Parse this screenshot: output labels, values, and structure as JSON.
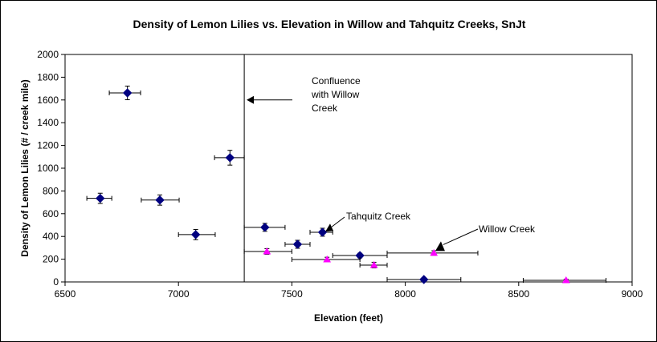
{
  "chart_data": {
    "type": "scatter",
    "title": "Density of Lemon Lilies vs. Elevation in Willow and Tahquitz Creeks, SnJt",
    "xlabel": "Elevation (feet)",
    "ylabel": "Density of Lemon Lilies (# / creek mile)",
    "xlim": [
      6500,
      9000
    ],
    "ylim": [
      0,
      2000
    ],
    "xticks": [
      6500,
      7000,
      7500,
      8000,
      8500,
      9000
    ],
    "yticks": [
      0,
      200,
      400,
      600,
      800,
      1000,
      1200,
      1400,
      1600,
      1800,
      2000
    ],
    "grid": false,
    "legend": "none",
    "series": [
      {
        "name": "Tahquitz Creek",
        "marker": "diamond",
        "color": "#000080",
        "points": [
          {
            "x": 6655,
            "y": 735,
            "xmin": 6596,
            "xmax": 6706,
            "yerr": 45
          },
          {
            "x": 6775,
            "y": 1662,
            "xmin": 6695,
            "xmax": 6833,
            "yerr": 60
          },
          {
            "x": 6918,
            "y": 720,
            "xmin": 6836,
            "xmax": 7003,
            "yerr": 45
          },
          {
            "x": 7076,
            "y": 416,
            "xmin": 7000,
            "xmax": 7162,
            "yerr": 45
          },
          {
            "x": 7227,
            "y": 1092,
            "xmin": 7159,
            "xmax": 7290,
            "yerr": 65
          },
          {
            "x": 7381,
            "y": 480,
            "xmin": 7290,
            "xmax": 7470,
            "yerr": 35
          },
          {
            "x": 7525,
            "y": 331,
            "xmin": 7470,
            "xmax": 7580,
            "yerr": 35
          },
          {
            "x": 7635,
            "y": 437,
            "xmin": 7580,
            "xmax": 7680,
            "yerr": 35
          },
          {
            "x": 7800,
            "y": 232,
            "xmin": 7680,
            "xmax": 7920,
            "yerr": 20
          },
          {
            "x": 8082,
            "y": 21,
            "xmin": 7920,
            "xmax": 8245,
            "yerr": 15
          }
        ]
      },
      {
        "name": "Willow Creek",
        "marker": "triangle",
        "color": "#FF00FF",
        "points": [
          {
            "x": 7390,
            "y": 268,
            "xmin": 7290,
            "xmax": 7500,
            "yerr": 25
          },
          {
            "x": 7655,
            "y": 197,
            "xmin": 7500,
            "xmax": 7800,
            "yerr": 20
          },
          {
            "x": 7862,
            "y": 148,
            "xmin": 7800,
            "xmax": 7920,
            "yerr": 25
          },
          {
            "x": 8126,
            "y": 254,
            "xmin": 7920,
            "xmax": 8320,
            "yerr": 20
          },
          {
            "x": 8709,
            "y": 14,
            "xmin": 8520,
            "xmax": 8885,
            "yerr": 10
          }
        ]
      }
    ],
    "reference_line": {
      "x": 7290
    },
    "annotations": [
      {
        "lines": [
          "Confluence",
          "with Willow",
          "Creek"
        ],
        "arrow_to": {
          "x": 7290,
          "y": 1600
        }
      },
      {
        "lines": [
          "Tahquitz Creek"
        ],
        "arrow_to": {
          "x": 7665,
          "y": 470
        }
      },
      {
        "lines": [
          "Willow Creek"
        ],
        "arrow_to": {
          "x": 8150,
          "y": 300
        }
      }
    ]
  }
}
